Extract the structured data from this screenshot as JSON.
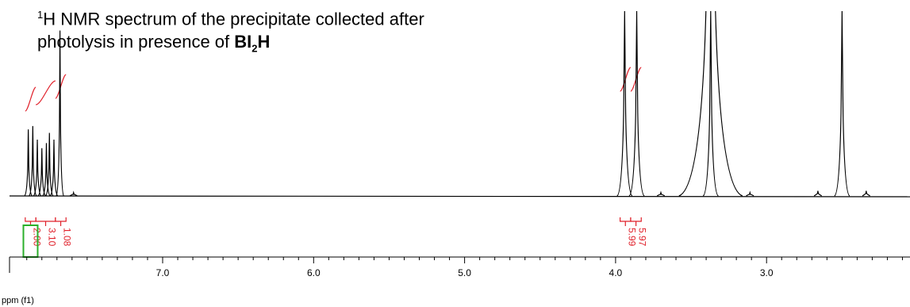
{
  "chart_data": {
    "type": "line",
    "title": {
      "sup": "1",
      "line1_rest": "H NMR spectrum of the precipitate collected after",
      "line2_plain": "photolysis in presence of ",
      "line2_bold_a": "BI",
      "line2_sub": "2",
      "line2_bold_b": "H"
    },
    "xlabel": "ppm (f1)",
    "xlim": [
      8.0,
      2.0
    ],
    "x_reversed": true,
    "x_ticks": [
      "7.0",
      "6.0",
      "5.0",
      "4.0",
      "3.0"
    ],
    "x_tick_values": [
      7.0,
      6.0,
      5.0,
      4.0,
      3.0
    ],
    "peaks": [
      {
        "ppm": 7.89,
        "height": 0.39
      },
      {
        "ppm": 7.86,
        "height": 0.41
      },
      {
        "ppm": 7.83,
        "height": 0.33
      },
      {
        "ppm": 7.8,
        "height": 0.28
      },
      {
        "ppm": 7.77,
        "height": 0.31
      },
      {
        "ppm": 7.75,
        "height": 0.37
      },
      {
        "ppm": 7.72,
        "height": 0.33
      },
      {
        "ppm": 7.68,
        "height": 0.97
      },
      {
        "ppm": 7.59,
        "height": 0.02
      },
      {
        "ppm": 3.94,
        "height": 1.4
      },
      {
        "ppm": 3.86,
        "height": 1.4
      },
      {
        "ppm": 3.7,
        "height": 0.02
      },
      {
        "ppm": 3.37,
        "height": 1.4
      },
      {
        "ppm": 3.11,
        "height": 0.02
      },
      {
        "ppm": 2.66,
        "height": 0.03
      },
      {
        "ppm": 2.5,
        "height": 1.4
      },
      {
        "ppm": 2.34,
        "height": 0.03
      }
    ],
    "integrals": [
      {
        "from": 7.91,
        "to": 7.84,
        "value": "2.00",
        "reference": true
      },
      {
        "from": 7.84,
        "to": 7.71,
        "value": "3.10",
        "reference": false
      },
      {
        "from": 7.71,
        "to": 7.64,
        "value": "1.08",
        "reference": false
      },
      {
        "from": 3.97,
        "to": 3.9,
        "value": "5.99",
        "reference": false
      },
      {
        "from": 3.9,
        "to": 3.83,
        "value": "5.97",
        "reference": false
      }
    ],
    "colors": {
      "spectrum": "#000000",
      "integral": "#e0202a",
      "reference_box": "#2ab02a",
      "axis": "#000000"
    }
  }
}
